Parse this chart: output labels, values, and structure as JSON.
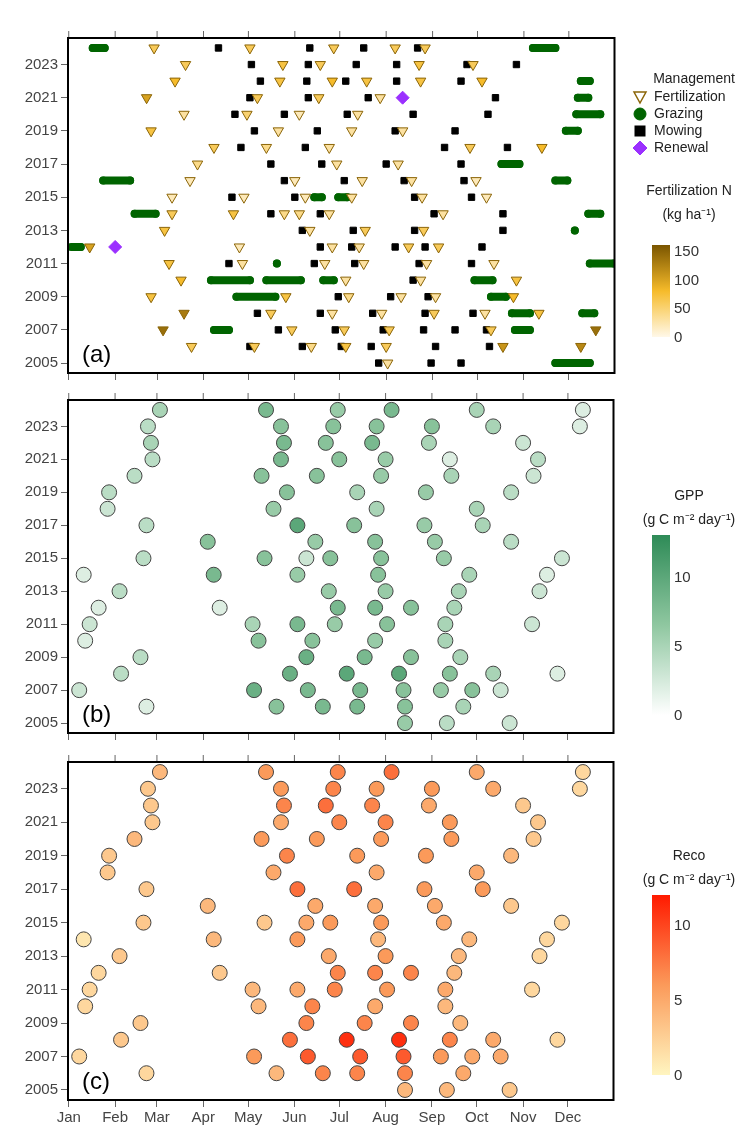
{
  "chart_data": [
    {
      "type": "scatter",
      "xlim": [
        "--01-01",
        "--12-31"
      ],
      "xticks": [
        {
          "value": "--01-01",
          "label": null
        },
        {
          "value": "--02-01",
          "label": null
        },
        {
          "value": "--03-01",
          "label": null
        },
        {
          "value": "--04-01",
          "label": null
        },
        {
          "value": "--05-01",
          "label": null
        },
        {
          "value": "--06-01",
          "label": null
        },
        {
          "value": "--07-01",
          "label": null
        },
        {
          "value": "--08-01",
          "label": null
        },
        {
          "value": "--09-01",
          "label": null
        },
        {
          "value": "--10-01",
          "label": null
        },
        {
          "value": "--11-01",
          "label": null
        },
        {
          "value": "--12-01",
          "label": null
        }
      ],
      "ylim": [
        2004.4,
        2024.6
      ],
      "yticks": [
        2005,
        2007,
        2009,
        2011,
        2013,
        2015,
        2017,
        2019,
        2021,
        2023
      ],
      "tick_labels": "y",
      "legend": "right",
      "legend_title": "Management",
      "clabel": "Fertilization N (kg ha⁻¹)",
      "clim": [
        0,
        160
      ],
      "cticks": [
        0,
        50,
        100,
        150
      ],
      "annotations": [
        "(a)"
      ],
      "series": [
        {
          "name": "Fertilization",
          "marker": "triangle",
          "color": "#8b6508",
          "x": [
            "--02-27",
            "--05-02",
            "--06-27",
            "--08-07",
            "--08-27",
            "--03-20",
            "--05-24",
            "--06-18",
            "--08-23",
            "--09-28",
            "--03-13",
            "--05-22",
            "--06-26",
            "--07-19",
            "--08-24",
            "--10-04",
            "--02-22",
            "--05-07",
            "--06-17",
            "--07-28",
            "--03-19",
            "--04-30",
            "--06-04",
            "--07-13",
            "--02-25",
            "--05-21",
            "--07-09",
            "--08-12",
            "--04-08",
            "--05-13",
            "--06-24",
            "--09-26",
            "--11-13",
            "--03-28",
            "--06-29",
            "--08-09",
            "--03-23",
            "--06-01",
            "--07-16",
            "--08-18",
            "--09-30",
            "--03-11",
            "--04-28",
            "--06-08",
            "--07-09",
            "--08-25",
            "--10-07",
            "--03-11",
            "--04-21",
            "--05-25",
            "--06-04",
            "--06-24",
            "--09-08",
            "--03-06",
            "--06-11",
            "--07-18",
            "--08-26",
            "--01-15",
            "--04-25",
            "--06-26",
            "--07-14",
            "--08-16",
            "--09-05",
            "--03-09",
            "--04-27",
            "--06-21",
            "--07-17",
            "--08-28",
            "--10-12",
            "--03-17",
            "--07-05",
            "--08-24",
            "--10-27",
            "--02-25",
            "--05-26",
            "--07-07",
            "--08-11",
            "--09-03",
            "--10-25",
            "--03-19",
            "--05-16",
            "--06-26",
            "--07-29",
            "--09-02",
            "--10-06",
            "--11-11",
            "--03-05",
            "--05-30",
            "--07-04",
            "--08-03",
            "--10-10",
            "--12-19",
            "--03-24",
            "--05-05",
            "--06-12",
            "--07-05",
            "--08-01",
            "--10-18",
            "--12-09",
            "--08-02"
          ],
          "values": [
            2024,
            2024,
            2024,
            2024,
            2024,
            2023,
            2023,
            2023,
            2023,
            2023,
            2022,
            2022,
            2022,
            2022,
            2022,
            2022,
            2021,
            2021,
            2021,
            2021,
            2020,
            2020,
            2020,
            2020,
            2019,
            2019,
            2019,
            2019,
            2018,
            2018,
            2018,
            2018,
            2018,
            2017,
            2017,
            2017,
            2016,
            2016,
            2016,
            2016,
            2016,
            2015,
            2015,
            2015,
            2015,
            2015,
            2015,
            2014,
            2014,
            2014,
            2014,
            2014,
            2014,
            2013,
            2013,
            2013,
            2013,
            2012,
            2012,
            2012,
            2012,
            2012,
            2012,
            2011,
            2011,
            2011,
            2011,
            2011,
            2011,
            2010,
            2010,
            2010,
            2010,
            2009,
            2009,
            2009,
            2009,
            2009,
            2009,
            2008,
            2008,
            2008,
            2008,
            2008,
            2008,
            2008,
            2007,
            2007,
            2007,
            2007,
            2007,
            2007,
            2006,
            2006,
            2006,
            2006,
            2006,
            2006,
            2006,
            2005
          ],
          "cvalues": [
            60,
            60,
            60,
            60,
            60,
            60,
            70,
            60,
            70,
            60,
            80,
            70,
            80,
            70,
            70,
            80,
            100,
            60,
            60,
            30,
            30,
            50,
            20,
            30,
            70,
            30,
            30,
            30,
            60,
            40,
            30,
            60,
            80,
            40,
            30,
            30,
            20,
            20,
            30,
            30,
            20,
            20,
            20,
            20,
            30,
            30,
            20,
            60,
            70,
            40,
            40,
            30,
            30,
            70,
            30,
            60,
            60,
            100,
            20,
            30,
            30,
            60,
            60,
            70,
            30,
            30,
            30,
            30,
            30,
            80,
            30,
            30,
            70,
            70,
            70,
            40,
            30,
            30,
            80,
            130,
            60,
            30,
            30,
            60,
            30,
            70,
            140,
            60,
            60,
            60,
            60,
            140,
            60,
            60,
            40,
            70,
            60,
            110,
            120,
            30
          ]
        },
        {
          "name": "Grazing",
          "type": "line",
          "marker": "circle",
          "color": "#006400",
          "x": [
            "--01-17",
            "--01-25",
            null,
            "--11-07",
            "--11-22",
            null,
            "--12-09",
            "--12-15",
            null,
            "--12-07",
            "--12-14",
            null,
            "--12-06",
            "--12-22",
            null,
            "--11-29",
            "--12-07",
            null,
            "--10-17",
            "--10-29",
            null,
            "--01-24",
            "--02-11",
            null,
            "--11-22",
            "--11-30",
            null,
            "--06-14",
            "--06-19",
            null,
            "--06-30",
            "--07-06",
            null,
            "--02-14",
            "--02-28",
            null,
            "--12-14",
            "--12-22",
            null,
            "--12-05",
            null,
            "--01-03",
            "--01-09",
            null,
            "--05-20",
            null,
            "--12-15",
            "--12-31",
            null,
            "--04-06",
            "--05-02",
            null,
            "--05-13",
            "--06-05",
            null,
            "--06-20",
            "--06-27",
            null,
            "--09-29",
            "--10-11",
            null,
            "--04-23",
            "--05-19",
            null,
            "--10-10",
            "--10-20",
            null,
            "--10-24",
            "--11-05",
            null,
            "--12-10",
            "--12-18",
            null,
            "--04-08",
            "--04-18",
            null,
            "--10-26",
            "--11-05",
            null,
            "--11-22",
            "--12-15"
          ],
          "values": [
            2024,
            2024,
            null,
            2024,
            2024,
            null,
            2022,
            2022,
            null,
            2021,
            2021,
            null,
            2020,
            2020,
            null,
            2019,
            2019,
            null,
            2017,
            2017,
            null,
            2016,
            2016,
            null,
            2016,
            2016,
            null,
            2015,
            2015,
            null,
            2015,
            2015,
            null,
            2014,
            2014,
            null,
            2014,
            2014,
            null,
            2013,
            null,
            2012,
            2012,
            null,
            2011,
            null,
            2011,
            2011,
            null,
            2010,
            2010,
            null,
            2010,
            2010,
            null,
            2010,
            2010,
            null,
            2010,
            2010,
            null,
            2009,
            2009,
            null,
            2009,
            2009,
            null,
            2008,
            2008,
            null,
            2008,
            2008,
            null,
            2007,
            2007,
            null,
            2007,
            2007,
            null,
            2005,
            2005
          ]
        },
        {
          "name": "Mowing",
          "marker": "square",
          "color": "#000000",
          "x": [
            "--04-11",
            "--06-11",
            "--07-17",
            "--08-22",
            "--05-03",
            "--06-10",
            "--07-12",
            "--08-08",
            "--09-24",
            "--10-27",
            "--05-09",
            "--06-09",
            "--07-05",
            "--08-08",
            "--09-20",
            "--05-02",
            "--06-10",
            "--07-20",
            "--10-13",
            "--04-22",
            "--05-25",
            "--07-06",
            "--08-19",
            "--10-08",
            "--05-05",
            "--06-16",
            "--08-07",
            "--09-16",
            "--04-26",
            "--06-08",
            "--09-09",
            "--10-21",
            "--05-16",
            "--06-19",
            "--08-01",
            "--09-20",
            "--05-25",
            "--07-04",
            "--08-13",
            "--09-22",
            "--04-20",
            "--06-01",
            "--08-20",
            "--09-27",
            "--05-16",
            "--06-18",
            "--09-02",
            "--10-18",
            "--06-06",
            "--07-10",
            "--08-20",
            "--10-18",
            "--06-18",
            "--07-09",
            "--08-07",
            "--08-27",
            "--10-04",
            "--04-18",
            "--06-14",
            "--07-11",
            "--08-23",
            "--09-27",
            "--08-19",
            "--06-30",
            "--08-04",
            "--08-29",
            "--05-07",
            "--06-18",
            "--07-23",
            "--08-27",
            "--09-28",
            "--05-21",
            "--06-28",
            "--07-30",
            "--08-26",
            "--09-16",
            "--10-07",
            "--05-02",
            "--06-06",
            "--07-02",
            "--07-22",
            "--09-03",
            "--10-09",
            "--07-27",
            "--08-31",
            "--09-20"
          ],
          "values": [
            2024,
            2024,
            2024,
            2024,
            2023,
            2023,
            2023,
            2023,
            2023,
            2023,
            2022,
            2022,
            2022,
            2022,
            2022,
            2021,
            2021,
            2021,
            2021,
            2020,
            2020,
            2020,
            2020,
            2020,
            2019,
            2019,
            2019,
            2019,
            2018,
            2018,
            2018,
            2018,
            2017,
            2017,
            2017,
            2017,
            2016,
            2016,
            2016,
            2016,
            2015,
            2015,
            2015,
            2015,
            2014,
            2014,
            2014,
            2014,
            2013,
            2013,
            2013,
            2013,
            2012,
            2012,
            2012,
            2012,
            2012,
            2011,
            2011,
            2011,
            2011,
            2011,
            2010,
            2009,
            2009,
            2009,
            2008,
            2008,
            2008,
            2008,
            2008,
            2007,
            2007,
            2007,
            2007,
            2007,
            2007,
            2006,
            2006,
            2006,
            2006,
            2006,
            2006,
            2005,
            2005,
            2005
          ]
        },
        {
          "name": "Renewal",
          "marker": "diamond",
          "color": "#9b30ff",
          "x": [
            "--08-12",
            "--02-01"
          ],
          "values": [
            2021,
            2012
          ]
        }
      ]
    },
    {
      "type": "scatter",
      "xlim": [
        "--01-01",
        "--12-31"
      ],
      "xticks": [
        {
          "value": "--01-01",
          "label": null
        },
        {
          "value": "--02-01",
          "label": null
        },
        {
          "value": "--03-01",
          "label": null
        },
        {
          "value": "--04-01",
          "label": null
        },
        {
          "value": "--05-01",
          "label": null
        },
        {
          "value": "--06-01",
          "label": null
        },
        {
          "value": "--07-01",
          "label": null
        },
        {
          "value": "--08-01",
          "label": null
        },
        {
          "value": "--09-01",
          "label": null
        },
        {
          "value": "--10-01",
          "label": null
        },
        {
          "value": "--11-01",
          "label": null
        },
        {
          "value": "--12-01",
          "label": null
        }
      ],
      "ylim": [
        2004.4,
        2024.6
      ],
      "yticks": [
        2005,
        2007,
        2009,
        2011,
        2013,
        2015,
        2017,
        2019,
        2021,
        2023
      ],
      "tick_labels": "y",
      "clabel": "GPP (g C m⁻² day⁻¹)",
      "clim": [
        0,
        13
      ],
      "cticks": [
        0,
        5,
        10
      ],
      "annotations": [
        "(b)"
      ],
      "series": [
        {
          "marker": "circle",
          "x": [
            "--03-03",
            "--05-13",
            "--06-30",
            "--08-05",
            "--10-01",
            "--12-11",
            "--02-23",
            "--05-23",
            "--06-27",
            "--07-26",
            "--09-01",
            "--10-12",
            "--12-09",
            "--02-25",
            "--05-25",
            "--06-22",
            "--07-23",
            "--08-30",
            "--11-01",
            "--02-26",
            "--05-23",
            "--07-01",
            "--08-01",
            "--09-13",
            "--11-11",
            "--02-14",
            "--05-10",
            "--06-16",
            "--07-29",
            "--09-14",
            "--11-08",
            "--01-28",
            "--05-27",
            "--07-13",
            "--08-28",
            "--10-24",
            "--01-27",
            "--05-18",
            "--07-26",
            "--10-01",
            "--02-22",
            "--06-03",
            "--07-11",
            "--08-27",
            "--10-05",
            "--04-04",
            "--06-15",
            "--07-25",
            "--09-03",
            "--10-24",
            "--02-20",
            "--05-12",
            "--06-09",
            "--06-25",
            "--07-29",
            "--09-09",
            "--11-27",
            "--01-11",
            "--04-08",
            "--06-03",
            "--07-27",
            "--09-26",
            "--11-17",
            "--02-04",
            "--06-24",
            "--08-01",
            "--09-19",
            "--11-12",
            "--01-21",
            "--04-12",
            "--06-30",
            "--07-25",
            "--08-18",
            "--09-16",
            "--01-15",
            "--05-04",
            "--06-03",
            "--06-28",
            "--08-02",
            "--09-10",
            "--11-07",
            "--01-12",
            "--05-08",
            "--06-13",
            "--07-25",
            "--09-10",
            "--02-18",
            "--06-09",
            "--07-18",
            "--08-18",
            "--09-20",
            "--02-05",
            "--05-29",
            "--07-06",
            "--08-10",
            "--09-13",
            "--10-12",
            "--11-24",
            "--01-08",
            "--05-05",
            "--06-10",
            "--07-15",
            "--08-13",
            "--09-07",
            "--09-28",
            "--10-17",
            "--02-22",
            "--05-20",
            "--06-20",
            "--07-13",
            "--08-14",
            "--09-22",
            "--08-14",
            "--09-11",
            "--10-23"
          ],
          "values": [
            2024,
            2024,
            2024,
            2024,
            2024,
            2024,
            2023,
            2023,
            2023,
            2023,
            2023,
            2023,
            2023,
            2022,
            2022,
            2022,
            2022,
            2022,
            2022,
            2021,
            2021,
            2021,
            2021,
            2021,
            2021,
            2020,
            2020,
            2020,
            2020,
            2020,
            2020,
            2019,
            2019,
            2019,
            2019,
            2019,
            2018,
            2018,
            2018,
            2018,
            2017,
            2017,
            2017,
            2017,
            2017,
            2016,
            2016,
            2016,
            2016,
            2016,
            2015,
            2015,
            2015,
            2015,
            2015,
            2015,
            2015,
            2014,
            2014,
            2014,
            2014,
            2014,
            2014,
            2013,
            2013,
            2013,
            2013,
            2013,
            2012,
            2012,
            2012,
            2012,
            2012,
            2012,
            2011,
            2011,
            2011,
            2011,
            2011,
            2011,
            2011,
            2010,
            2010,
            2010,
            2010,
            2010,
            2009,
            2009,
            2009,
            2009,
            2009,
            2008,
            2008,
            2008,
            2008,
            2008,
            2008,
            2008,
            2007,
            2007,
            2007,
            2007,
            2007,
            2007,
            2007,
            2007,
            2006,
            2006,
            2006,
            2006,
            2006,
            2006,
            2005,
            2005,
            2005
          ],
          "cvalues": [
            5,
            8,
            6,
            8,
            5,
            2,
            4,
            7,
            7,
            7,
            7,
            5,
            2,
            5,
            8,
            7,
            8,
            5,
            3,
            4,
            8,
            7,
            6,
            2,
            4,
            4,
            7,
            7,
            6,
            5,
            3,
            4,
            7,
            5,
            6,
            4,
            3,
            6,
            5,
            5,
            4,
            10,
            7,
            6,
            5,
            7,
            6,
            7,
            6,
            4,
            4,
            7,
            3,
            7,
            7,
            6,
            3,
            2,
            8,
            6,
            7,
            5,
            2,
            4,
            6,
            6,
            5,
            3,
            2,
            2,
            8,
            8,
            7,
            5,
            3,
            5,
            8,
            6,
            7,
            5,
            3,
            2,
            7,
            7,
            6,
            5,
            4,
            9,
            8,
            7,
            5,
            4,
            9,
            10,
            10,
            7,
            5,
            2,
            3,
            9,
            8,
            8,
            7,
            6,
            7,
            3,
            2,
            7,
            8,
            8,
            7,
            5,
            6,
            4,
            3
          ]
        }
      ]
    },
    {
      "type": "scatter",
      "xlim": [
        "--01-01",
        "--12-31"
      ],
      "xticks": [
        {
          "value": "--01-01",
          "label": "Jan"
        },
        {
          "value": "--02-01",
          "label": "Feb"
        },
        {
          "value": "--03-01",
          "label": "Mar"
        },
        {
          "value": "--04-01",
          "label": "Apr"
        },
        {
          "value": "--05-01",
          "label": "May"
        },
        {
          "value": "--06-01",
          "label": "Jun"
        },
        {
          "value": "--07-01",
          "label": "Jul"
        },
        {
          "value": "--08-01",
          "label": "Aug"
        },
        {
          "value": "--09-01",
          "label": "Sep"
        },
        {
          "value": "--10-01",
          "label": "Oct"
        },
        {
          "value": "--11-01",
          "label": "Nov"
        },
        {
          "value": "--12-01",
          "label": "Dec"
        }
      ],
      "ylim": [
        2004.4,
        2024.6
      ],
      "yticks": [
        2005,
        2007,
        2009,
        2011,
        2013,
        2015,
        2017,
        2019,
        2021,
        2023
      ],
      "clabel": "Reco (g C m⁻² day⁻¹)",
      "clim": [
        0,
        12
      ],
      "cticks": [
        0,
        5,
        10
      ],
      "annotations": [
        "(c)"
      ],
      "series": [
        {
          "marker": "circle",
          "x": [
            "--03-03",
            "--05-13",
            "--06-30",
            "--08-05",
            "--10-01",
            "--12-11",
            "--02-23",
            "--05-23",
            "--06-27",
            "--07-26",
            "--09-01",
            "--10-12",
            "--12-09",
            "--02-25",
            "--05-25",
            "--06-22",
            "--07-23",
            "--08-30",
            "--11-01",
            "--02-26",
            "--05-23",
            "--07-01",
            "--08-01",
            "--09-13",
            "--11-11",
            "--02-14",
            "--05-10",
            "--06-16",
            "--07-29",
            "--09-14",
            "--11-08",
            "--01-28",
            "--05-27",
            "--07-13",
            "--08-28",
            "--10-24",
            "--01-27",
            "--05-18",
            "--07-26",
            "--10-01",
            "--02-22",
            "--06-03",
            "--07-11",
            "--08-27",
            "--10-05",
            "--04-04",
            "--06-15",
            "--07-25",
            "--09-03",
            "--10-24",
            "--02-20",
            "--05-12",
            "--06-09",
            "--06-25",
            "--07-29",
            "--09-09",
            "--11-27",
            "--01-11",
            "--04-08",
            "--06-03",
            "--07-27",
            "--09-26",
            "--11-17",
            "--02-04",
            "--06-24",
            "--08-01",
            "--09-19",
            "--11-12",
            "--01-21",
            "--04-12",
            "--06-30",
            "--07-25",
            "--08-18",
            "--09-16",
            "--01-15",
            "--05-04",
            "--06-03",
            "--06-28",
            "--08-02",
            "--09-10",
            "--11-07",
            "--01-12",
            "--05-08",
            "--06-13",
            "--07-25",
            "--09-10",
            "--02-18",
            "--06-09",
            "--07-18",
            "--08-18",
            "--09-20",
            "--02-05",
            "--05-29",
            "--07-06",
            "--08-10",
            "--09-13",
            "--10-12",
            "--11-24",
            "--01-08",
            "--05-05",
            "--06-10",
            "--07-15",
            "--08-13",
            "--09-07",
            "--09-28",
            "--10-17",
            "--02-22",
            "--05-20",
            "--06-20",
            "--07-13",
            "--08-14",
            "--09-22",
            "--08-14",
            "--09-11",
            "--10-23"
          ],
          "values": [
            2024,
            2024,
            2024,
            2024,
            2024,
            2024,
            2023,
            2023,
            2023,
            2023,
            2023,
            2023,
            2023,
            2022,
            2022,
            2022,
            2022,
            2022,
            2022,
            2021,
            2021,
            2021,
            2021,
            2021,
            2021,
            2020,
            2020,
            2020,
            2020,
            2020,
            2020,
            2019,
            2019,
            2019,
            2019,
            2019,
            2018,
            2018,
            2018,
            2018,
            2017,
            2017,
            2017,
            2017,
            2017,
            2016,
            2016,
            2016,
            2016,
            2016,
            2015,
            2015,
            2015,
            2015,
            2015,
            2015,
            2015,
            2014,
            2014,
            2014,
            2014,
            2014,
            2014,
            2013,
            2013,
            2013,
            2013,
            2013,
            2012,
            2012,
            2012,
            2012,
            2012,
            2012,
            2011,
            2011,
            2011,
            2011,
            2011,
            2011,
            2011,
            2010,
            2010,
            2010,
            2010,
            2010,
            2009,
            2009,
            2009,
            2009,
            2009,
            2008,
            2008,
            2008,
            2008,
            2008,
            2008,
            2008,
            2007,
            2007,
            2007,
            2007,
            2007,
            2007,
            2007,
            2007,
            2006,
            2006,
            2006,
            2006,
            2006,
            2006,
            2005,
            2005,
            2005
          ],
          "cvalues": [
            4,
            6,
            7,
            8,
            5,
            2,
            3,
            6,
            7,
            6,
            6,
            5,
            2,
            3,
            7,
            8,
            7,
            5,
            3,
            3,
            5,
            7,
            7,
            6,
            3,
            4,
            6,
            6,
            6,
            6,
            3,
            3,
            7,
            6,
            6,
            4,
            3,
            5,
            5,
            5,
            3,
            8,
            8,
            6,
            6,
            4,
            5,
            5,
            5,
            3,
            3,
            3,
            5,
            6,
            6,
            5,
            2,
            1,
            4,
            6,
            4,
            4,
            2,
            3,
            5,
            6,
            4,
            2,
            2,
            3,
            7,
            7,
            7,
            4,
            2,
            4,
            5,
            7,
            6,
            5,
            2,
            2,
            4,
            7,
            5,
            4,
            3,
            7,
            7,
            7,
            4,
            3,
            8,
            11,
            11,
            7,
            5,
            2,
            2,
            6,
            9,
            9,
            9,
            6,
            5,
            5,
            2,
            4,
            7,
            7,
            7,
            5,
            4,
            4,
            3
          ]
        }
      ]
    }
  ]
}
